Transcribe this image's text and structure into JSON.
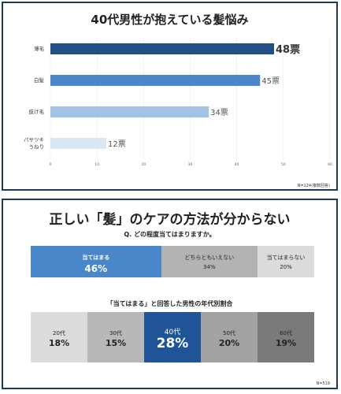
{
  "chart_data": [
    {
      "type": "bar",
      "orientation": "horizontal",
      "title": "40代男性が抱えている髪悩み",
      "categories": [
        "薄毛",
        "白髪",
        "抜け毛",
        "パサツキ\nうねり"
      ],
      "values": [
        48,
        45,
        34,
        12
      ],
      "value_labels": [
        "48票",
        "45票",
        "34票",
        "12票"
      ],
      "xlim": [
        0,
        60
      ],
      "xticks": [
        "0",
        "10",
        "20",
        "30",
        "40",
        "50",
        "60"
      ],
      "colors": [
        "#234f85",
        "#4a87c8",
        "#a3c3e6",
        "#d9e6f4"
      ],
      "note": "N=124(複数回答)",
      "grid": true
    },
    {
      "type": "bar",
      "orientation": "stacked-100",
      "title": "正しい「髪」のケアの方法が分からない",
      "question": "Q. どの程度当てはまりますか。",
      "segments": [
        {
          "label": "当てはまる",
          "value": 46,
          "value_label": "46%",
          "color": "#4a87c8"
        },
        {
          "label": "どちらともいえない",
          "value": 34,
          "value_label": "34%",
          "color": "#b3b3b3"
        },
        {
          "label": "当てはまらない",
          "value": 20,
          "value_label": "20%",
          "color": "#dcdcdc"
        }
      ]
    },
    {
      "type": "bar",
      "orientation": "segments",
      "title": "「当てはまる」と回答した男性の年代別割合",
      "segments": [
        {
          "label": "20代",
          "value": 18,
          "value_label": "18%",
          "color": "#dcdcdc"
        },
        {
          "label": "30代",
          "value": 15,
          "value_label": "15%",
          "color": "#b8b8b8"
        },
        {
          "label": "40代",
          "value": 28,
          "value_label": "28%",
          "color": "#1f5596"
        },
        {
          "label": "50代",
          "value": 20,
          "value_label": "20%",
          "color": "#a3a3a3"
        },
        {
          "label": "60代",
          "value": 19,
          "value_label": "19%",
          "color": "#7a7a7a"
        }
      ],
      "note": "N=519"
    }
  ]
}
